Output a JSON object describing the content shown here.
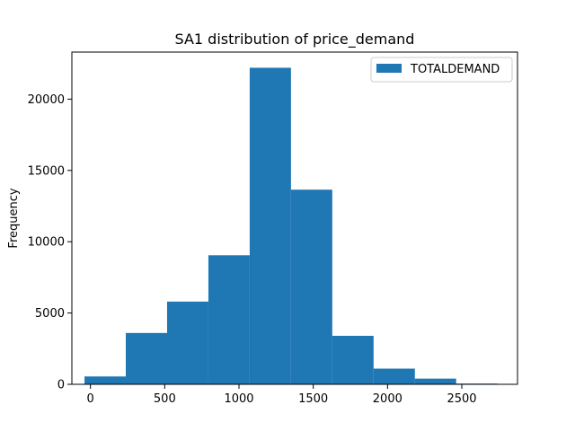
{
  "chart_data": {
    "type": "bar",
    "title": "SA1 distribution of price_demand",
    "xlabel": "",
    "ylabel": "Frequency",
    "xlim": [
      -125,
      2875
    ],
    "ylim": [
      0,
      23300
    ],
    "xticks": [
      0,
      500,
      1000,
      1500,
      2000,
      2500
    ],
    "yticks": [
      0,
      5000,
      10000,
      15000,
      20000
    ],
    "bin_edges": [
      -40,
      238,
      516,
      794,
      1072,
      1350,
      1628,
      1906,
      2184,
      2462,
      2740
    ],
    "series": [
      {
        "name": "TOTALDEMAND",
        "color": "#1f77b4",
        "values": [
          550,
          3600,
          5800,
          9050,
          22200,
          13650,
          3400,
          1100,
          400,
          50
        ]
      }
    ],
    "legend": "top-right",
    "grid": false
  }
}
